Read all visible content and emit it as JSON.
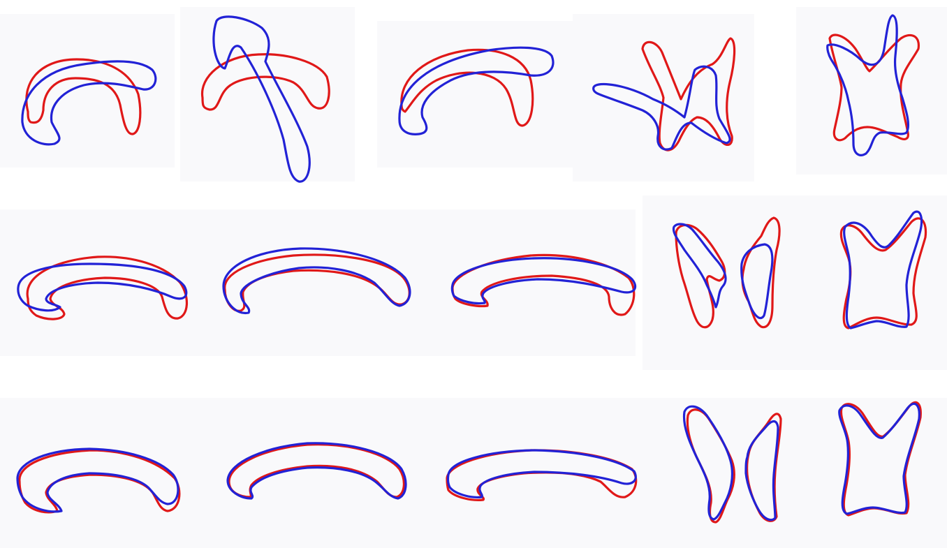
{
  "figure": {
    "rows": 3,
    "columns": 5,
    "colors": {
      "contour_a": "#e01818",
      "contour_b": "#2222d6",
      "overlap": "#e020e0",
      "background": "#ffffff",
      "panel_background": "#f9f9fb"
    },
    "rows_content": [
      {
        "shapes": [
          "arch",
          "arch",
          "arch",
          "cross-section",
          "cross-section"
        ],
        "alignment": "poor"
      },
      {
        "shapes": [
          "arch",
          "arch",
          "arch",
          "cross-section",
          "cross-section"
        ],
        "alignment": "moderate"
      },
      {
        "shapes": [
          "arch",
          "arch",
          "arch",
          "cross-section",
          "cross-section"
        ],
        "alignment": "close"
      }
    ]
  }
}
